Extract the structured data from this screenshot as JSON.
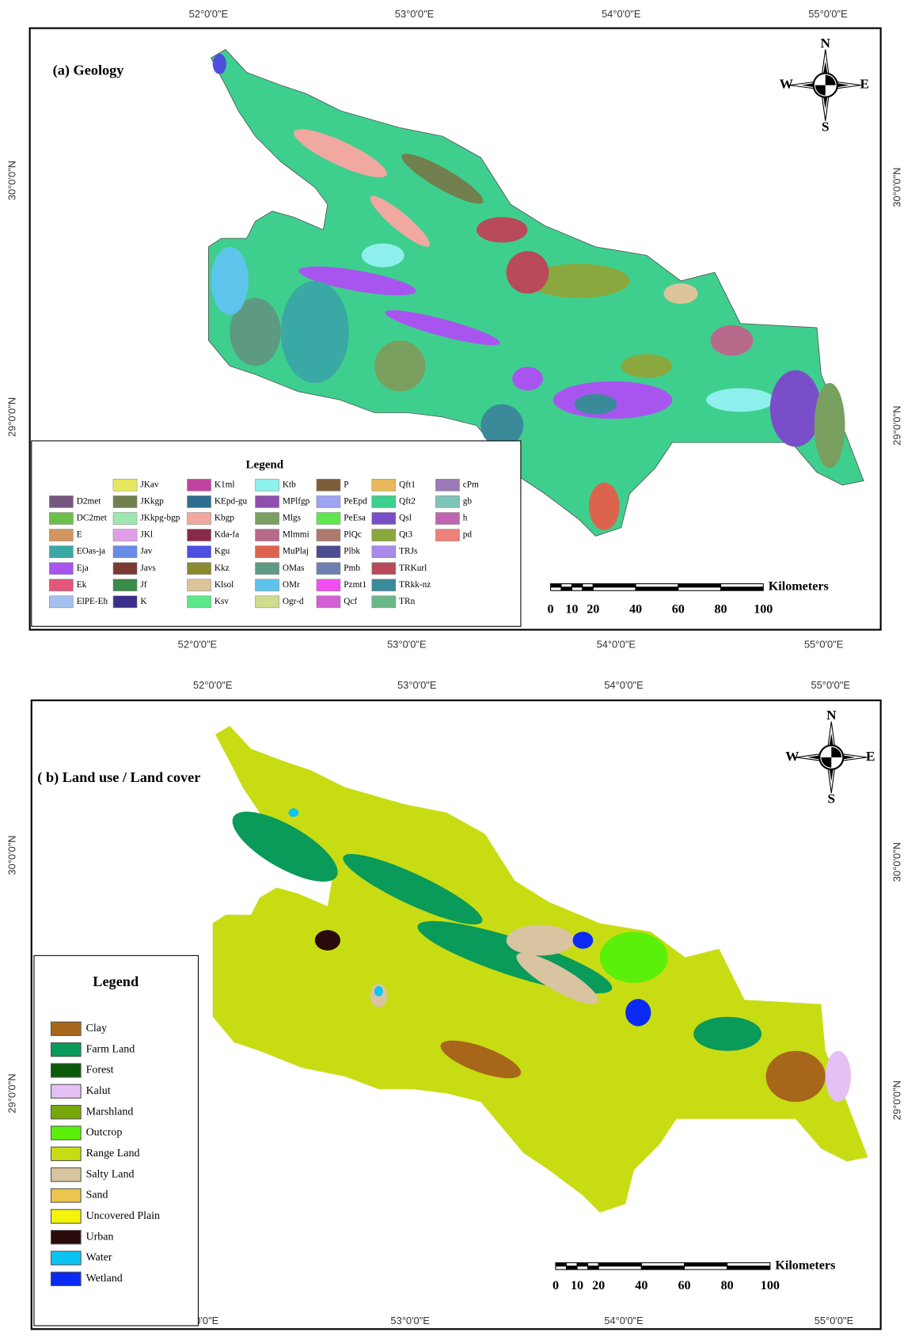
{
  "panels": [
    {
      "title": "(a) Geology",
      "lon_labels": [
        "52°0'0\"E",
        "53°0'0\"E",
        "54°0'0\"E",
        "55°0'0\"E"
      ],
      "lat_labels": [
        "30°0'0\"N",
        "29°0'0\"N"
      ],
      "compass": {
        "n": "N",
        "s": "S",
        "e": "E",
        "w": "W"
      },
      "scale": {
        "unit": "Kilometers",
        "ticks": [
          0,
          10,
          20,
          40,
          60,
          80,
          100
        ]
      },
      "legend": {
        "title": "Legend",
        "items": [
          {
            "label": "D2met",
            "color": "#76577f"
          },
          {
            "label": "DC2met",
            "color": "#6cc04a"
          },
          {
            "label": "E",
            "color": "#d39560"
          },
          {
            "label": "EOas-ja",
            "color": "#3aa8a4"
          },
          {
            "label": "Eja",
            "color": "#a855f0"
          },
          {
            "label": "Ek",
            "color": "#e4567a"
          },
          {
            "label": "ElPE-Eh",
            "color": "#a4c0ee"
          },
          {
            "label": "JKav",
            "color": "#e8e860"
          },
          {
            "label": "JKkgp",
            "color": "#71804e"
          },
          {
            "label": "JKkpg-bgp",
            "color": "#9ee8b0"
          },
          {
            "label": "JKl",
            "color": "#e09ee8"
          },
          {
            "label": "Jav",
            "color": "#6a8ae8"
          },
          {
            "label": "Javs",
            "color": "#7a3a34"
          },
          {
            "label": "Jf",
            "color": "#3a8a4a"
          },
          {
            "label": "K",
            "color": "#3a2e8a"
          },
          {
            "label": "K1ml",
            "color": "#c0449e"
          },
          {
            "label": "KEpd-gu",
            "color": "#2e6e8e"
          },
          {
            "label": "Kbgp",
            "color": "#f0a8a0"
          },
          {
            "label": "Kda-fa",
            "color": "#8a2a4a"
          },
          {
            "label": "Kgu",
            "color": "#4e4ee0"
          },
          {
            "label": "Kkz",
            "color": "#8a8a2e"
          },
          {
            "label": "Klsol",
            "color": "#dcc49a"
          },
          {
            "label": "Ksv",
            "color": "#5ce88a"
          },
          {
            "label": "Ktb",
            "color": "#8ef0ec"
          },
          {
            "label": "MPlfgp",
            "color": "#8e4eae"
          },
          {
            "label": "Mlgs",
            "color": "#7aa060"
          },
          {
            "label": "Mlmmi",
            "color": "#b86a8a"
          },
          {
            "label": "MuPlaj",
            "color": "#dc644e"
          },
          {
            "label": "OMas",
            "color": "#5e9a82"
          },
          {
            "label": "OMr",
            "color": "#5ec4ec"
          },
          {
            "label": "Ogr-d",
            "color": "#d0dc8e"
          },
          {
            "label": "P",
            "color": "#7e5e3a"
          },
          {
            "label": "PeEpd",
            "color": "#a0a4f4"
          },
          {
            "label": "PeEsa",
            "color": "#5ee84e"
          },
          {
            "label": "PlQc",
            "color": "#ae7a6e"
          },
          {
            "label": "Plbk",
            "color": "#4a4e8e"
          },
          {
            "label": "Pmb",
            "color": "#6e80b0"
          },
          {
            "label": "Pzmt1",
            "color": "#f04ef0"
          },
          {
            "label": "Qcf",
            "color": "#d45ed4"
          },
          {
            "label": "Qft1",
            "color": "#e8b85a"
          },
          {
            "label": "Qft2",
            "color": "#3ecf8e"
          },
          {
            "label": "Qsl",
            "color": "#7a4ec8"
          },
          {
            "label": "Qt3",
            "color": "#8aa83e"
          },
          {
            "label": "TRJs",
            "color": "#a88ae8"
          },
          {
            "label": "TRKurl",
            "color": "#b84a5a"
          },
          {
            "label": "TRkk-nz",
            "color": "#3a8a9a"
          },
          {
            "label": "TRn",
            "color": "#6ab888"
          },
          {
            "label": "cPm",
            "color": "#9a7ab8"
          },
          {
            "label": "gb",
            "color": "#7ec4b8"
          },
          {
            "label": "h",
            "color": "#c064b0"
          },
          {
            "label": "pd",
            "color": "#f0807a"
          }
        ]
      }
    },
    {
      "title": "( b) Land use / Land cover",
      "lon_labels": [
        "52°0'0\"E",
        "53°0'0\"E",
        "54°0'0\"E",
        "55°0'0\"E"
      ],
      "lat_labels": [
        "30°0'0\"N",
        "29°0'0\"N"
      ],
      "compass": {
        "n": "N",
        "s": "S",
        "e": "E",
        "w": "W"
      },
      "scale": {
        "unit": "Kilometers",
        "ticks": [
          0,
          10,
          20,
          40,
          60,
          80,
          100
        ]
      },
      "legend": {
        "title": "Legend",
        "items": [
          {
            "label": "Clay",
            "color": "#a8661a"
          },
          {
            "label": "Farm Land",
            "color": "#0a9a5a"
          },
          {
            "label": "Forest",
            "color": "#0a5a0a"
          },
          {
            "label": "Kalut",
            "color": "#e4c0f4"
          },
          {
            "label": "Marshland",
            "color": "#76a80a"
          },
          {
            "label": "Outcrop",
            "color": "#5af00a"
          },
          {
            "label": "Range Land",
            "color": "#c8dc14"
          },
          {
            "label": "Salty Land",
            "color": "#d8c4a0"
          },
          {
            "label": "Sand",
            "color": "#ecc44e"
          },
          {
            "label": "Uncovered Plain",
            "color": "#f4f40a"
          },
          {
            "label": "Urban",
            "color": "#2a0a0a"
          },
          {
            "label": "Water",
            "color": "#0ac4f4"
          },
          {
            "label": "Wetland",
            "color": "#0a2af4"
          }
        ]
      }
    }
  ]
}
